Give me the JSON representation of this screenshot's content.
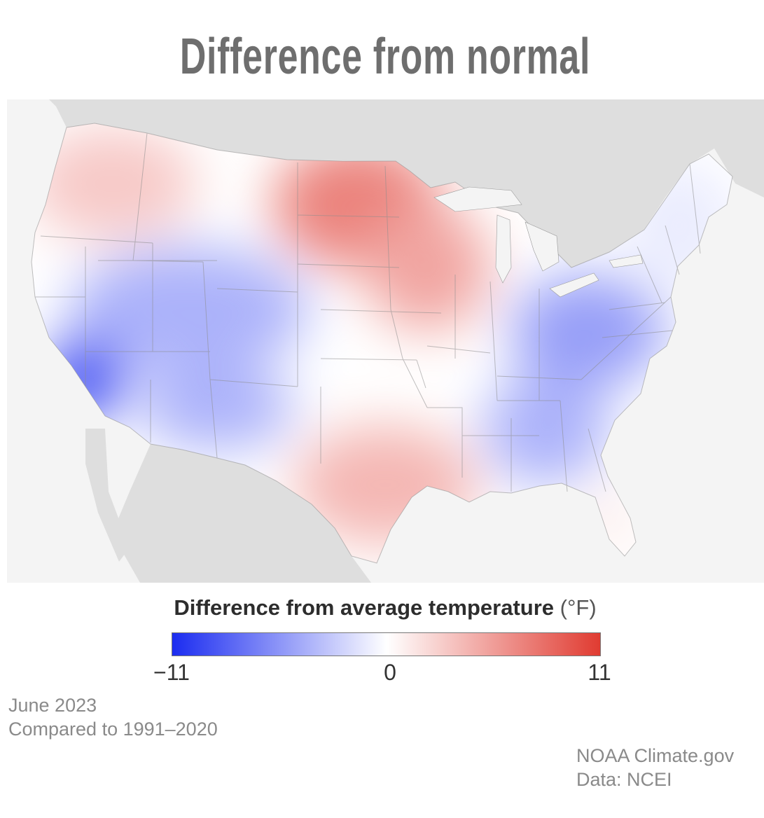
{
  "title": "Difference from normal",
  "legend": {
    "title": "Difference from average temperature",
    "unit": "(°F)",
    "min_label": "−11",
    "mid_label": "0",
    "max_label": "11",
    "range": [
      -11,
      11
    ],
    "colors": {
      "low": "#1b2cf0",
      "mid": "#ffffff",
      "high": "#e03a30"
    }
  },
  "period": {
    "month": "June 2023",
    "baseline": "Compared to 1991–2020"
  },
  "credits": {
    "source": "NOAA Climate.gov",
    "data": "Data: NCEI"
  },
  "map": {
    "colors": {
      "land": "#dddddd",
      "water": "#f4f4f4",
      "borders": "#8c8c8c"
    },
    "regions": [
      {
        "name": "northern-plains",
        "anomaly_f": 7
      },
      {
        "name": "pacific-northwest",
        "anomaly_f": 3
      },
      {
        "name": "upper-midwest",
        "anomaly_f": 5
      },
      {
        "name": "great-basin-rockies",
        "anomaly_f": -4
      },
      {
        "name": "southern-california",
        "anomaly_f": -9
      },
      {
        "name": "southwest",
        "anomaly_f": -4
      },
      {
        "name": "texas-gulf",
        "anomaly_f": 4
      },
      {
        "name": "southeast",
        "anomaly_f": -4
      },
      {
        "name": "ohio-valley-mid-atlantic",
        "anomaly_f": -5
      },
      {
        "name": "northeast",
        "anomaly_f": -1
      },
      {
        "name": "florida",
        "anomaly_f": 1
      }
    ]
  }
}
